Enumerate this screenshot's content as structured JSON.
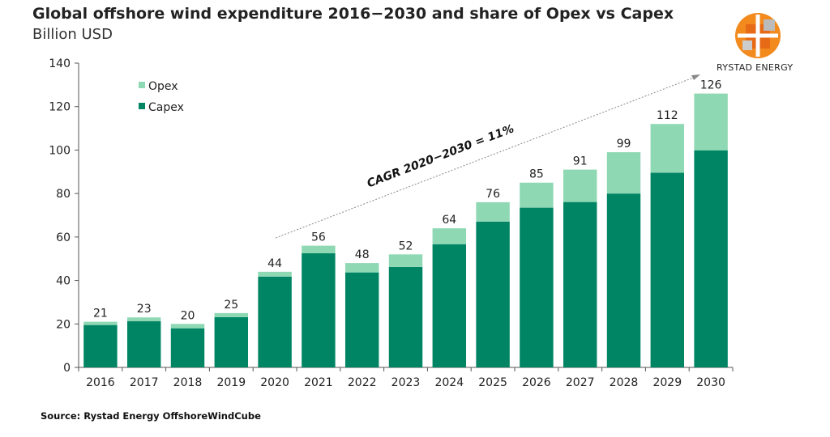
{
  "chart_data": {
    "type": "bar",
    "stacked": true,
    "title": "Global offshore wind expenditure 2016−2030 and share of Opex vs Capex",
    "subtitle": "Billion USD",
    "categories": [
      "2016",
      "2017",
      "2018",
      "2019",
      "2020",
      "2021",
      "2022",
      "2023",
      "2024",
      "2025",
      "2026",
      "2027",
      "2028",
      "2029",
      "2030"
    ],
    "series": [
      {
        "name": "Capex",
        "color": "#008564",
        "values": [
          19.5,
          21.3,
          18,
          23.1,
          41.8,
          52.5,
          43.7,
          46.2,
          56.7,
          67.1,
          73.5,
          76.1,
          80,
          89.6,
          99.9
        ]
      },
      {
        "name": "Opex",
        "color": "#8ed8b4",
        "values": [
          1.5,
          1.7,
          2,
          1.9,
          2.2,
          3.5,
          4.3,
          5.8,
          7.3,
          8.9,
          11.5,
          14.9,
          19,
          22.4,
          26.1
        ]
      }
    ],
    "totals": [
      "21",
      "23",
      "20",
      "25",
      "44",
      "56",
      "48",
      "52",
      "64",
      "76",
      "85",
      "91",
      "99",
      "112",
      "126"
    ],
    "ylim": [
      0,
      140
    ],
    "yticks": [
      "0",
      "20",
      "40",
      "60",
      "80",
      "100",
      "120",
      "140"
    ],
    "legend": "top-left",
    "grid": false,
    "annotation": "CAGR 2020−2030 = 11%"
  },
  "source": "Source: Rystad Energy OffshoreWindCube",
  "logo_text": "RYSTAD ENERGY"
}
